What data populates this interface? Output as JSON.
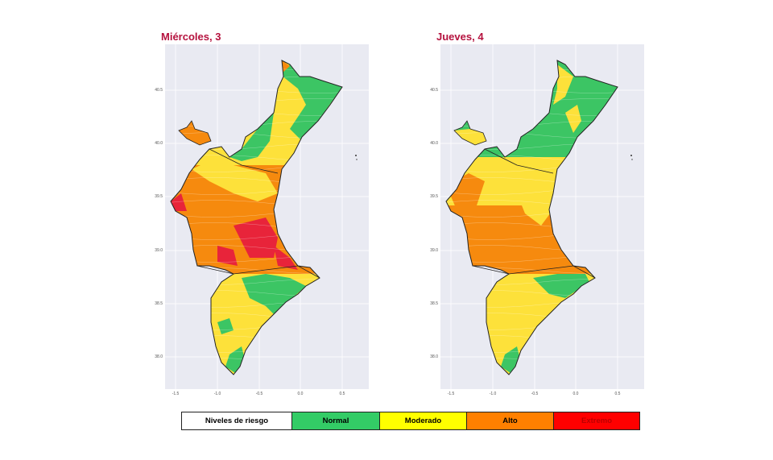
{
  "maps": [
    {
      "title": "Miércoles, 3"
    },
    {
      "title": "Jueves, 4"
    }
  ],
  "axes": {
    "y_ticks": [
      "40.5",
      "40.0",
      "39.5",
      "39.0",
      "38.5",
      "38.0"
    ],
    "x_ticks": [
      "-1.5",
      "-1.0",
      "-0.5",
      "0.0",
      "0.5"
    ]
  },
  "legend": {
    "title": "Niveles de riesgo",
    "levels": [
      {
        "label": "Normal",
        "color": "#33cc66"
      },
      {
        "label": "Moderado",
        "color": "#ffff00"
      },
      {
        "label": "Alto",
        "color": "#ff8000"
      },
      {
        "label": "Extremo",
        "color": "#ff0000"
      }
    ]
  },
  "colors": {
    "green": "#3cc564",
    "yellow": "#fde13a",
    "orange": "#f68a0e",
    "red": "#e8243a"
  }
}
